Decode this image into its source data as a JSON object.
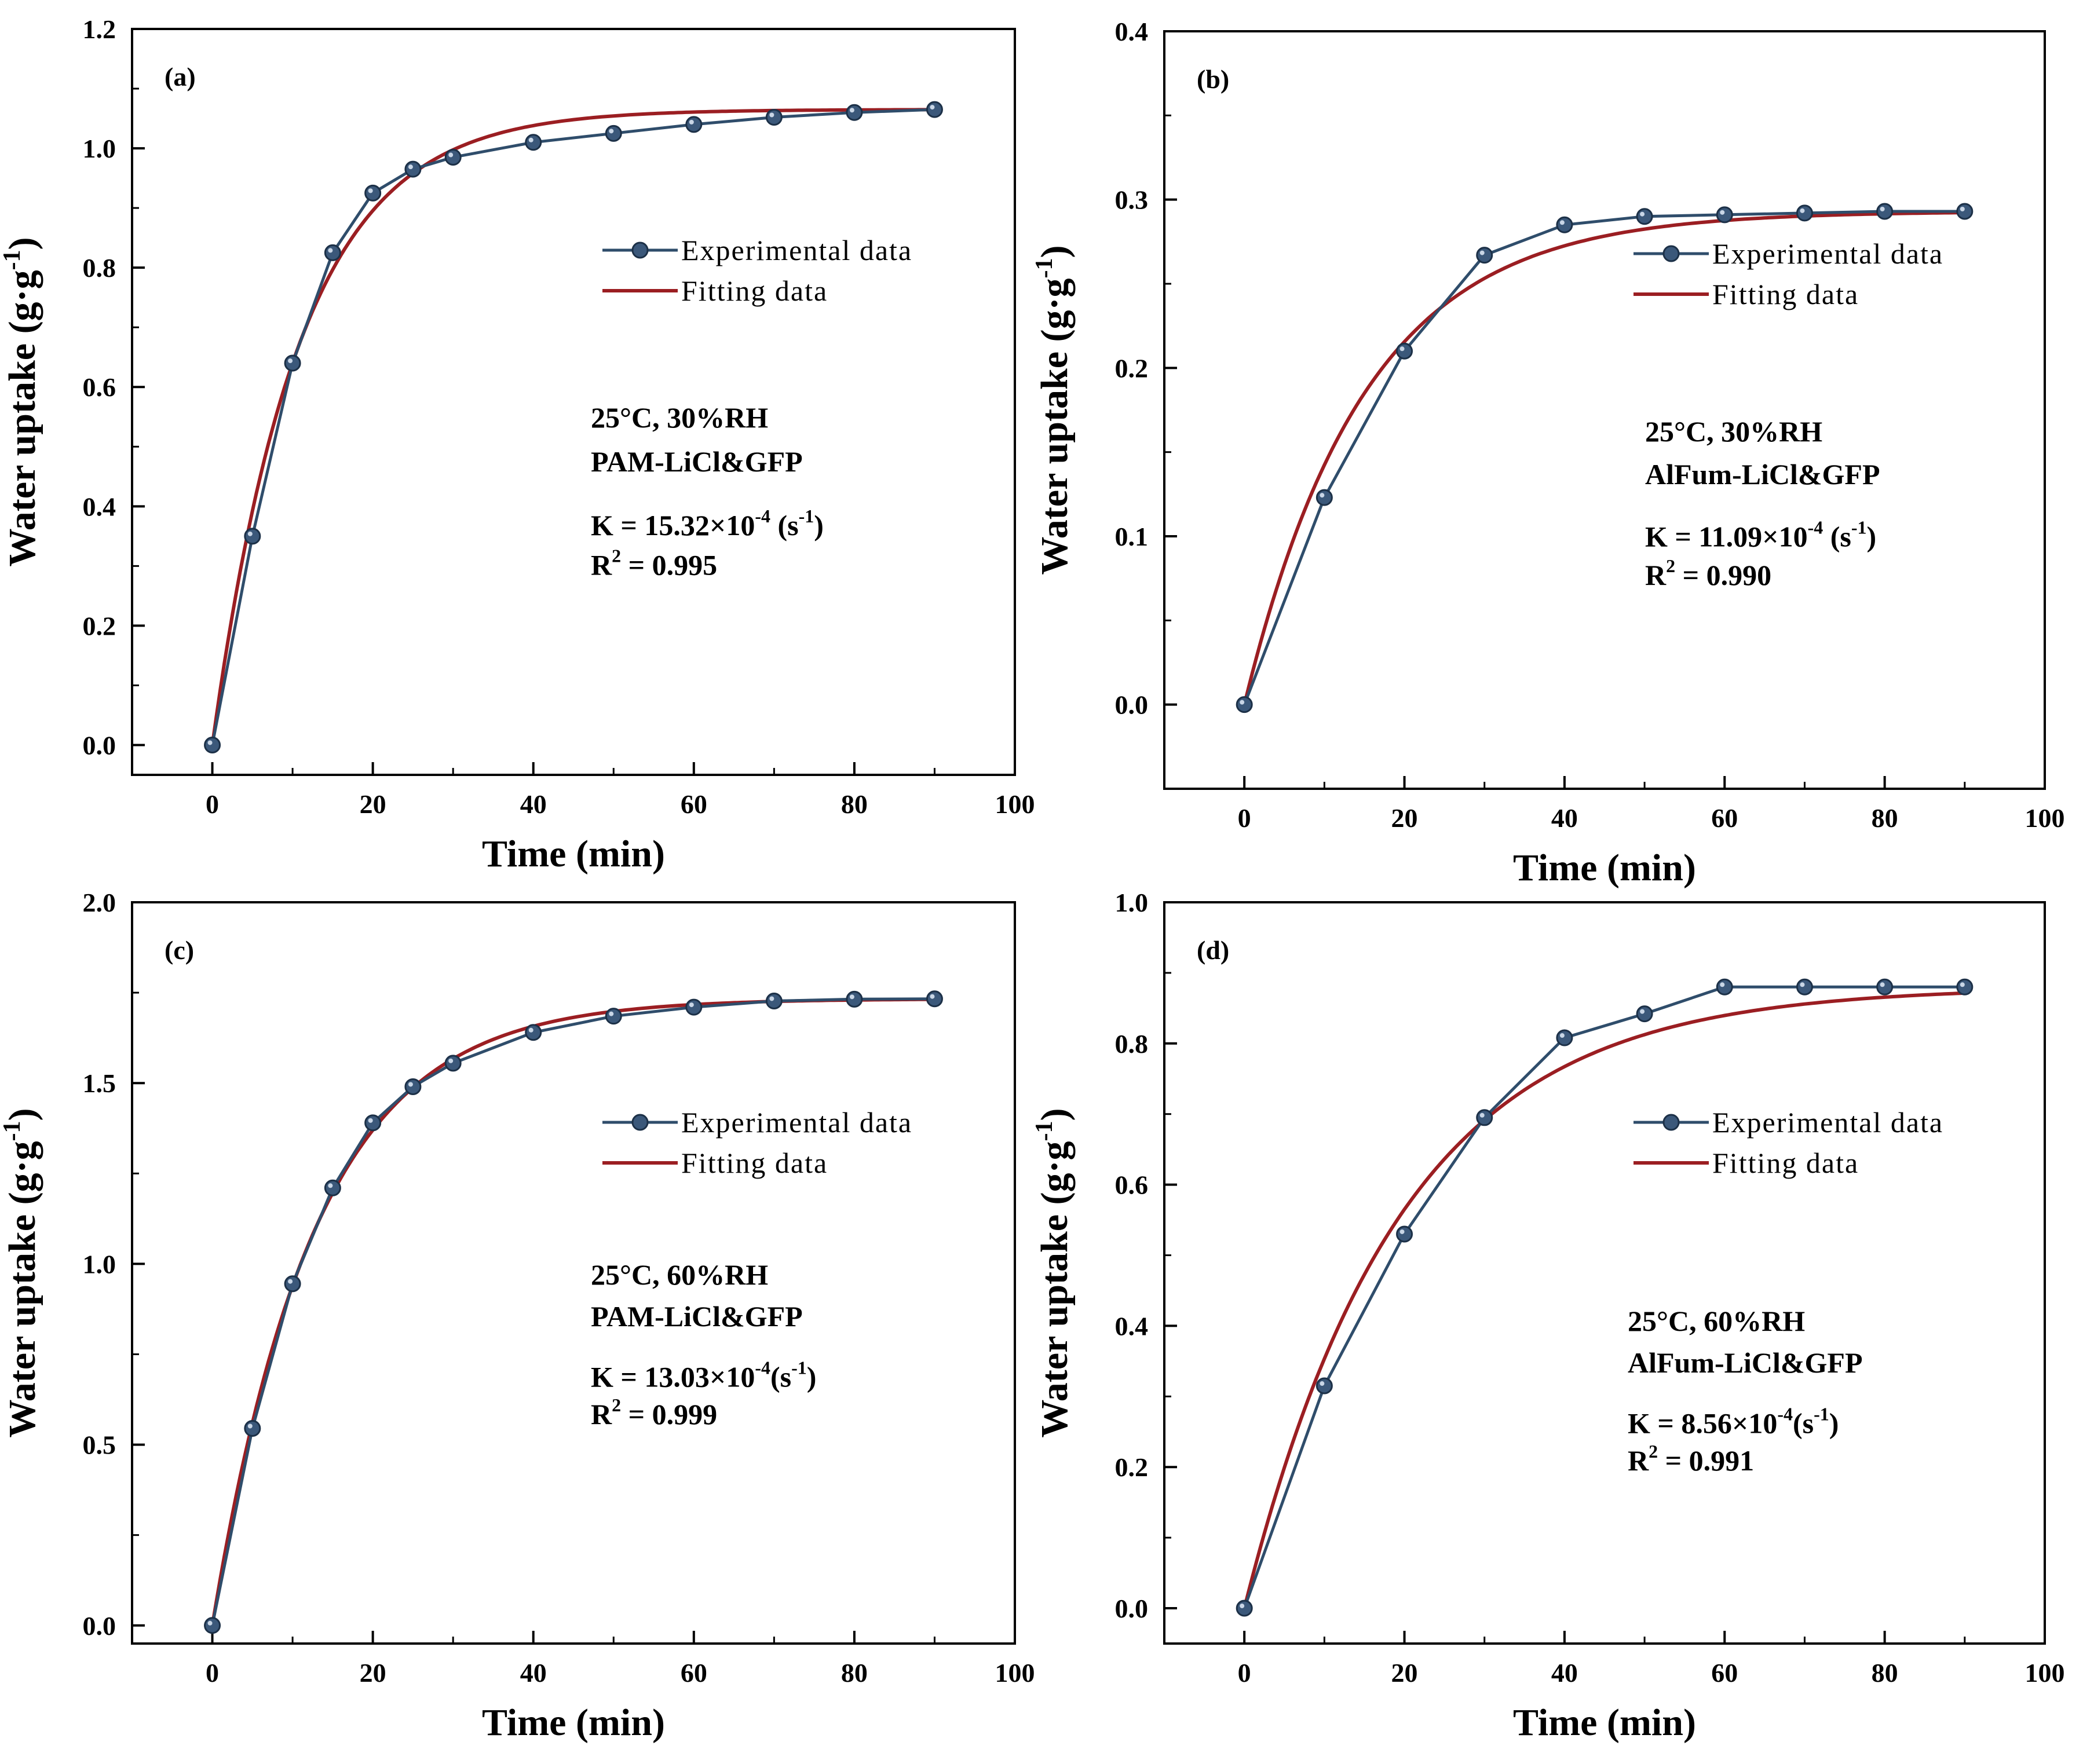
{
  "figure": {
    "legend": {
      "experimental": "Experimental data",
      "fitting": "Fitting data"
    },
    "colors": {
      "experimental": "#2f4d6b",
      "fitting": "#9b1e22",
      "marker_fill": "#3b587a",
      "axis": "#000000"
    }
  },
  "chart_data": [
    {
      "id": "a",
      "type": "line",
      "tag": "(a)",
      "xlabel": "Time (min)",
      "ylabel": {
        "main": "Water uptake (g·g",
        "sup": "-1",
        "close": ")"
      },
      "xlim": [
        -10,
        100
      ],
      "ylim": [
        -0.05,
        1.2
      ],
      "xticks": [
        0,
        20,
        40,
        60,
        80,
        100
      ],
      "yticks": [
        0.0,
        0.2,
        0.4,
        0.6,
        0.8,
        1.0,
        1.2
      ],
      "ytick_labels": [
        "0.0",
        "0.2",
        "0.4",
        "0.6",
        "0.8",
        "1.0",
        "1.2"
      ],
      "series": [
        {
          "name": "Experimental data",
          "x": [
            0,
            5,
            10,
            15,
            20,
            25,
            30,
            40,
            50,
            60,
            70,
            80,
            90
          ],
          "y": [
            0.0,
            0.35,
            0.64,
            0.825,
            0.925,
            0.965,
            0.985,
            1.01,
            1.025,
            1.04,
            1.052,
            1.06,
            1.065
          ]
        },
        {
          "name": "Fitting data",
          "model": "1-exp",
          "qe": 1.065,
          "k_per_s": 0.001532
        }
      ],
      "annotation": {
        "cond": "25°C, 30%RH",
        "material": "PAM-LiCl&GFP",
        "k_pre": "K = 15.32×10",
        "k_exp": "-4",
        "k_unit": " (s",
        "k_unit_exp": "-1",
        "k_close": ")",
        "r_pre": "R",
        "r_exp": "2",
        "r_val": " = 0.995"
      }
    },
    {
      "id": "b",
      "type": "line",
      "tag": "(b)",
      "xlabel": "Time (min)",
      "ylabel": {
        "main": "Water uptake (g·g",
        "sup": "-1",
        "close": ")"
      },
      "xlim": [
        -10,
        100
      ],
      "ylim": [
        -0.05,
        0.4
      ],
      "xticks": [
        0,
        20,
        40,
        60,
        80,
        100
      ],
      "yticks": [
        0.0,
        0.1,
        0.2,
        0.3,
        0.4
      ],
      "ytick_labels": [
        "0.0",
        "0.1",
        "0.2",
        "0.3",
        "0.4"
      ],
      "series": [
        {
          "name": "Experimental data",
          "x": [
            0,
            10,
            20,
            30,
            40,
            50,
            60,
            70,
            80,
            90
          ],
          "y": [
            0.0,
            0.123,
            0.21,
            0.267,
            0.285,
            0.29,
            0.291,
            0.292,
            0.293,
            0.293
          ]
        },
        {
          "name": "Fitting data",
          "model": "1-exp",
          "qe": 0.293,
          "k_per_s": 0.001109
        }
      ],
      "annotation": {
        "cond": "25°C, 30%RH",
        "material": "AlFum-LiCl&GFP",
        "k_pre": "K = 11.09×10",
        "k_exp": "-4",
        "k_unit": " (s",
        "k_unit_exp": "-1",
        "k_close": ")",
        "r_pre": "R",
        "r_exp": "2",
        "r_val": " = 0.990"
      }
    },
    {
      "id": "c",
      "type": "line",
      "tag": "(c)",
      "xlabel": "Time (min)",
      "ylabel": {
        "main": "Water uptake (g·g",
        "sup": "-1",
        "close": ")"
      },
      "xlim": [
        -10,
        100
      ],
      "ylim": [
        -0.05,
        2.0
      ],
      "xticks": [
        0,
        20,
        40,
        60,
        80,
        100
      ],
      "yticks": [
        0.0,
        0.5,
        1.0,
        1.5,
        2.0
      ],
      "ytick_labels": [
        "0.0",
        "0.5",
        "1.0",
        "1.5",
        "2.0"
      ],
      "series": [
        {
          "name": "Experimental data",
          "x": [
            0,
            5,
            10,
            15,
            20,
            25,
            30,
            40,
            50,
            60,
            70,
            80,
            90
          ],
          "y": [
            0.0,
            0.545,
            0.945,
            1.21,
            1.39,
            1.49,
            1.555,
            1.64,
            1.685,
            1.71,
            1.727,
            1.732,
            1.733
          ]
        },
        {
          "name": "Fitting data",
          "model": "1-exp",
          "qe": 1.733,
          "k_per_s": 0.001303
        }
      ],
      "annotation": {
        "cond": "25°C, 60%RH",
        "material": "PAM-LiCl&GFP",
        "k_pre": "K = 13.03×10",
        "k_exp": "-4",
        "k_unit": "(s",
        "k_unit_exp": "-1",
        "k_close": ")",
        "r_pre": "R",
        "r_exp": "2",
        "r_val": " = 0.999"
      }
    },
    {
      "id": "d",
      "type": "line",
      "tag": "(d)",
      "xlabel": "Time (min)",
      "ylabel": {
        "main": "Water uptake (g·g",
        "sup": "-1",
        "close": ")"
      },
      "xlim": [
        -10,
        100
      ],
      "ylim": [
        -0.05,
        1.0
      ],
      "xticks": [
        0,
        20,
        40,
        60,
        80,
        100
      ],
      "yticks": [
        0.0,
        0.2,
        0.4,
        0.6,
        0.8,
        1.0
      ],
      "ytick_labels": [
        "0.0",
        "0.2",
        "0.4",
        "0.6",
        "0.8",
        "1.0"
      ],
      "series": [
        {
          "name": "Experimental data",
          "x": [
            0,
            10,
            20,
            30,
            40,
            50,
            60,
            70,
            80,
            90
          ],
          "y": [
            0.0,
            0.315,
            0.53,
            0.695,
            0.808,
            0.842,
            0.88,
            0.88,
            0.88,
            0.88
          ]
        },
        {
          "name": "Fitting data",
          "model": "1-exp",
          "qe": 0.88,
          "k_per_s": 0.000856
        }
      ],
      "annotation": {
        "cond": "25°C, 60%RH",
        "material": "AlFum-LiCl&GFP",
        "k_pre": "K = 8.56×10",
        "k_exp": "-4",
        "k_unit": "(s",
        "k_unit_exp": "-1",
        "k_close": ")",
        "r_pre": "R",
        "r_exp": "2",
        "r_val": " = 0.991"
      }
    }
  ]
}
